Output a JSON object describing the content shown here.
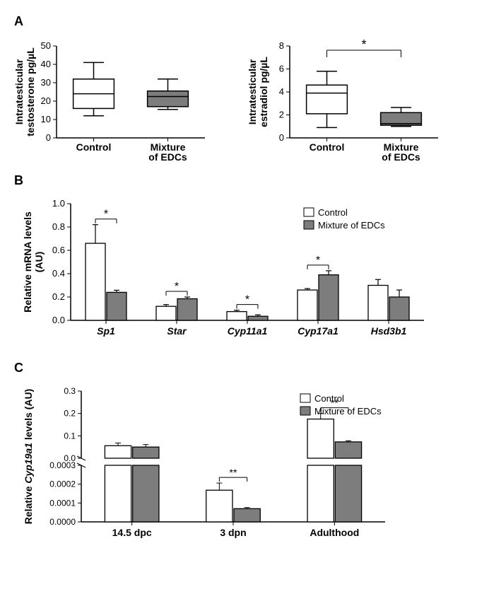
{
  "colors": {
    "control_fill": "#ffffff",
    "mixture_fill": "#7d7d7d",
    "stroke": "#000000",
    "text": "#000000"
  },
  "panels": {
    "A": {
      "label": "A",
      "left": {
        "type": "boxplot",
        "ylabel_line1": "Intratesticular",
        "ylabel_line2": "testosterone pg/µL",
        "ylim": [
          0,
          50
        ],
        "ytick_step": 10,
        "yticks": [
          0,
          10,
          20,
          30,
          40,
          50
        ],
        "categories": [
          "Control",
          "Mixture\nof EDCs"
        ],
        "data": [
          {
            "min": 12,
            "q1": 16,
            "median": 24,
            "q3": 32,
            "max": 41,
            "fill_key": "control_fill"
          },
          {
            "min": 15.5,
            "q1": 17,
            "median": 22.5,
            "q3": 25.5,
            "max": 32,
            "fill_key": "mixture_fill"
          }
        ],
        "significance": null
      },
      "right": {
        "type": "boxplot",
        "ylabel_line1": "Intratesticular",
        "ylabel_line2": "estradiol pg/µL",
        "ylim": [
          0,
          8
        ],
        "ytick_step": 2,
        "yticks": [
          0,
          2,
          4,
          6,
          8
        ],
        "categories": [
          "Control",
          "Mixture\nof EDCs"
        ],
        "data": [
          {
            "min": 0.9,
            "q1": 2.1,
            "median": 3.9,
            "q3": 4.6,
            "max": 5.8,
            "fill_key": "control_fill"
          },
          {
            "min": 1.0,
            "q1": 1.1,
            "median": 1.25,
            "q3": 2.2,
            "max": 2.65,
            "fill_key": "mixture_fill"
          }
        ],
        "significance": {
          "between": [
            0,
            1
          ],
          "label": "*"
        }
      }
    },
    "B": {
      "label": "B",
      "type": "bar",
      "ylabel": "Relative mRNA levels\n(AU)",
      "ylim": [
        0.0,
        1.0
      ],
      "ytick_step": 0.2,
      "yticks": [
        0.0,
        0.2,
        0.4,
        0.6,
        0.8,
        1.0
      ],
      "categories": [
        "Sp1",
        "Star",
        "Cyp11a1",
        "Cyp17a1",
        "Hsd3b1"
      ],
      "series": [
        {
          "name": "Control",
          "fill_key": "control_fill",
          "values": [
            0.66,
            0.12,
            0.075,
            0.26,
            0.3
          ],
          "errors": [
            0.16,
            0.015,
            0.012,
            0.012,
            0.05
          ]
        },
        {
          "name": "Mixture of EDCs",
          "fill_key": "mixture_fill",
          "values": [
            0.24,
            0.185,
            0.035,
            0.39,
            0.2
          ],
          "errors": [
            0.018,
            0.015,
            0.012,
            0.035,
            0.06
          ]
        }
      ],
      "significance": [
        {
          "cat": 0,
          "label": "*"
        },
        {
          "cat": 1,
          "label": "*"
        },
        {
          "cat": 2,
          "label": "*"
        },
        {
          "cat": 3,
          "label": "*"
        }
      ],
      "legend": {
        "items": [
          "Control",
          "Mixture of EDCs"
        ]
      }
    },
    "C": {
      "label": "C",
      "type": "bar_broken",
      "ylabel_line1": "Relative ",
      "ylabel_gene": "Cyp19a1",
      "ylabel_line2": " levels (AU)",
      "upper": {
        "ylim": [
          0.0,
          0.3
        ],
        "yticks": [
          0.0,
          0.1,
          0.2,
          0.3
        ]
      },
      "lower": {
        "ylim": [
          0.0,
          0.0003
        ],
        "yticks": [
          0.0,
          0.0001,
          0.0002,
          0.0003
        ]
      },
      "categories": [
        "14.5 dpc",
        "3 dpn",
        "Adulthood"
      ],
      "series": [
        {
          "name": "Control",
          "fill_key": "control_fill",
          "values": [
            0.056,
            0.000168,
            0.175
          ],
          "errors": [
            0.012,
            3.8e-05,
            0.025
          ],
          "segment": [
            "upper",
            "lower",
            "upper"
          ]
        },
        {
          "name": "Mixture of EDCs",
          "fill_key": "mixture_fill",
          "values": [
            0.05,
            7e-05,
            0.073
          ],
          "errors": [
            0.011,
            6e-06,
            0.005
          ],
          "segment": [
            "upper",
            "lower",
            "upper"
          ]
        }
      ],
      "significance": [
        {
          "cat": 1,
          "label": "**",
          "segment": "lower"
        },
        {
          "cat": 2,
          "label": "**",
          "segment": "upper"
        }
      ],
      "legend": {
        "items": [
          "Control",
          "Mixture of EDCs"
        ]
      }
    }
  }
}
